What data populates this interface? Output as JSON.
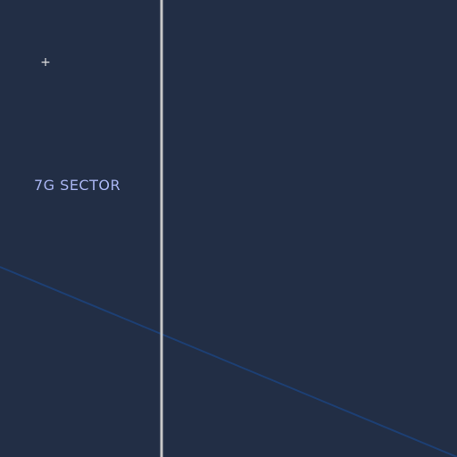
{
  "map": {
    "sector_label": "7G SECTOR",
    "marker_glyph": "+",
    "marker_icon": "crosshair-icon",
    "colors": {
      "background": "#222e45",
      "vertical_line": "#c9c9c9",
      "diagonal_line": "#1d3f73",
      "label": "#a9b5f2",
      "marker": "#e0e0e0"
    }
  }
}
